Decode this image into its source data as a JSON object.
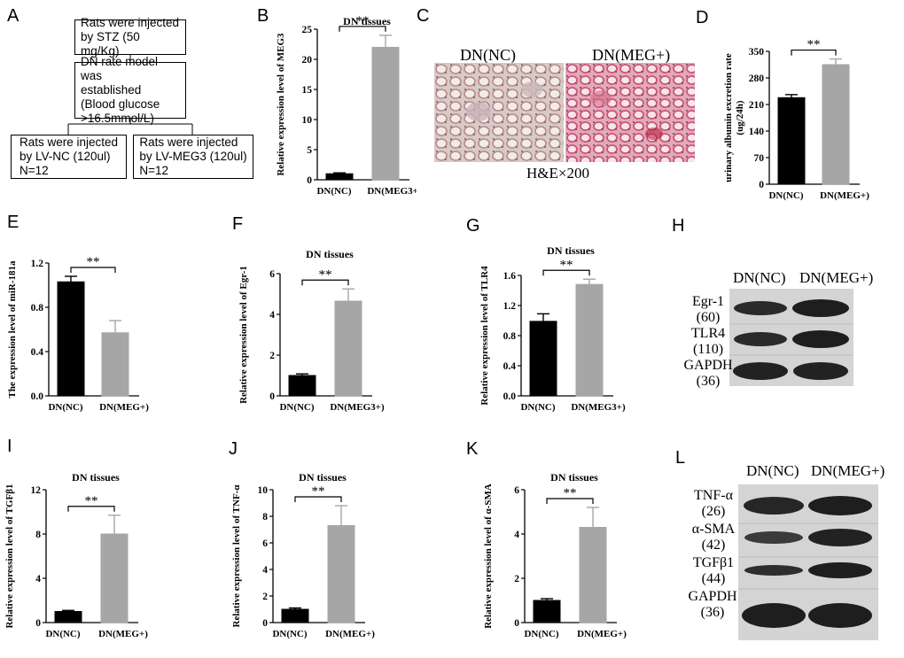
{
  "panel_labels": [
    "A",
    "B",
    "C",
    "D",
    "E",
    "F",
    "G",
    "H",
    "I",
    "J",
    "K",
    "L"
  ],
  "flowchart": {
    "box1": "Rats were injected\nby STZ (50 mg/Kg)",
    "box2": "DN rate model was\nestablished\n(Blood glucose\n>16.5mmol/L)",
    "box3": "Rats were injected\nby LV-NC (120ul)\nN=12",
    "box4": "Rats were injected\nby LV-MEG3 (120ul)\nN=12"
  },
  "histology": {
    "left_label": "DN(NC)",
    "right_label": "DN(MEG+)",
    "caption": "H&E×200"
  },
  "blot_H": {
    "headers": [
      "DN(NC)",
      "DN(MEG+)"
    ],
    "bands": [
      {
        "name": "Egr-1",
        "size": "(60)"
      },
      {
        "name": "TLR4",
        "size": "(110)"
      },
      {
        "name": "GAPDH",
        "size": "(36)"
      }
    ]
  },
  "blot_L": {
    "headers": [
      "DN(NC)",
      "DN(MEG+)"
    ],
    "bands": [
      {
        "name": "TNF-α",
        "size": "(26)"
      },
      {
        "name": "α-SMA",
        "size": "(42)"
      },
      {
        "name": "TGFβ1",
        "size": "(44)"
      },
      {
        "name": "GAPDH",
        "size": "(36)"
      }
    ]
  },
  "colors": {
    "black_bar": "#000000",
    "gray_bar": "#a6a6a6"
  },
  "chart_data": [
    {
      "id": "B",
      "type": "bar",
      "title": "DN tissues",
      "ylabel": "Relative expression level of MEG3",
      "categories": [
        "DN(NC)",
        "DN(MEG3+)"
      ],
      "values": [
        1,
        22
      ],
      "errors": [
        0.15,
        2
      ],
      "ylim": [
        0,
        25
      ],
      "yticks": [
        0,
        5,
        10,
        15,
        20,
        25
      ],
      "significance": "**"
    },
    {
      "id": "D",
      "type": "bar",
      "title": "",
      "ylabel": "urinary albumin excretion rate\n(ug/24h)",
      "categories": [
        "DN(NC)",
        "DN(MEG+)"
      ],
      "values": [
        228,
        315
      ],
      "errors": [
        8,
        15
      ],
      "ylim": [
        0,
        350
      ],
      "yticks": [
        0,
        70,
        140,
        210,
        280,
        350
      ],
      "significance": "**"
    },
    {
      "id": "E",
      "type": "bar",
      "title": "",
      "ylabel": "The expression level of miR-181a",
      "categories": [
        "DN(NC)",
        "DN(MEG+)"
      ],
      "values": [
        1.03,
        0.57
      ],
      "errors": [
        0.05,
        0.11
      ],
      "ylim": [
        0,
        1.2
      ],
      "yticks": [
        "0.0",
        "0.4",
        "0.8",
        "1.2"
      ],
      "significance": "**"
    },
    {
      "id": "F",
      "type": "bar",
      "title": "DN tissues",
      "ylabel": "Relative expression level of Egr-1",
      "categories": [
        "DN(NC)",
        "DN(MEG3+)"
      ],
      "values": [
        1,
        4.65
      ],
      "errors": [
        0.08,
        0.6
      ],
      "ylim": [
        0,
        6
      ],
      "yticks": [
        0,
        2,
        4,
        6
      ],
      "significance": "**"
    },
    {
      "id": "G",
      "type": "bar",
      "title": "DN tissues",
      "ylabel": "Relative expression level of TLR4",
      "categories": [
        "DN(NC)",
        "DN(MEG3+)"
      ],
      "values": [
        0.99,
        1.48
      ],
      "errors": [
        0.1,
        0.07
      ],
      "ylim": [
        0,
        1.6
      ],
      "yticks": [
        "0.0",
        "0.4",
        "0.8",
        "1.2",
        "1.6"
      ],
      "significance": "**"
    },
    {
      "id": "I",
      "type": "bar",
      "title": "DN tissues",
      "ylabel": "Relative expression level of TGFβ1",
      "categories": [
        "DN(NC)",
        "DN(MEG+)"
      ],
      "values": [
        1,
        8
      ],
      "errors": [
        0.1,
        1.7
      ],
      "ylim": [
        0,
        12
      ],
      "yticks": [
        0,
        4,
        8,
        12
      ],
      "significance": "**"
    },
    {
      "id": "J",
      "type": "bar",
      "title": "DN tissues",
      "ylabel": "Relative expression level of TNF-α",
      "categories": [
        "DN(NC)",
        "DN(MEG+)"
      ],
      "values": [
        1,
        7.3
      ],
      "errors": [
        0.1,
        1.5
      ],
      "ylim": [
        0,
        10
      ],
      "yticks": [
        0,
        2,
        4,
        6,
        8,
        10
      ],
      "significance": "**"
    },
    {
      "id": "K",
      "type": "bar",
      "title": "DN tissues",
      "ylabel": "Relative expression level of α-SMA",
      "categories": [
        "DN(NC)",
        "DN(MEG+)"
      ],
      "values": [
        1,
        4.3
      ],
      "errors": [
        0.08,
        0.9
      ],
      "ylim": [
        0,
        6
      ],
      "yticks": [
        0,
        2,
        4,
        6
      ],
      "significance": "**"
    }
  ]
}
